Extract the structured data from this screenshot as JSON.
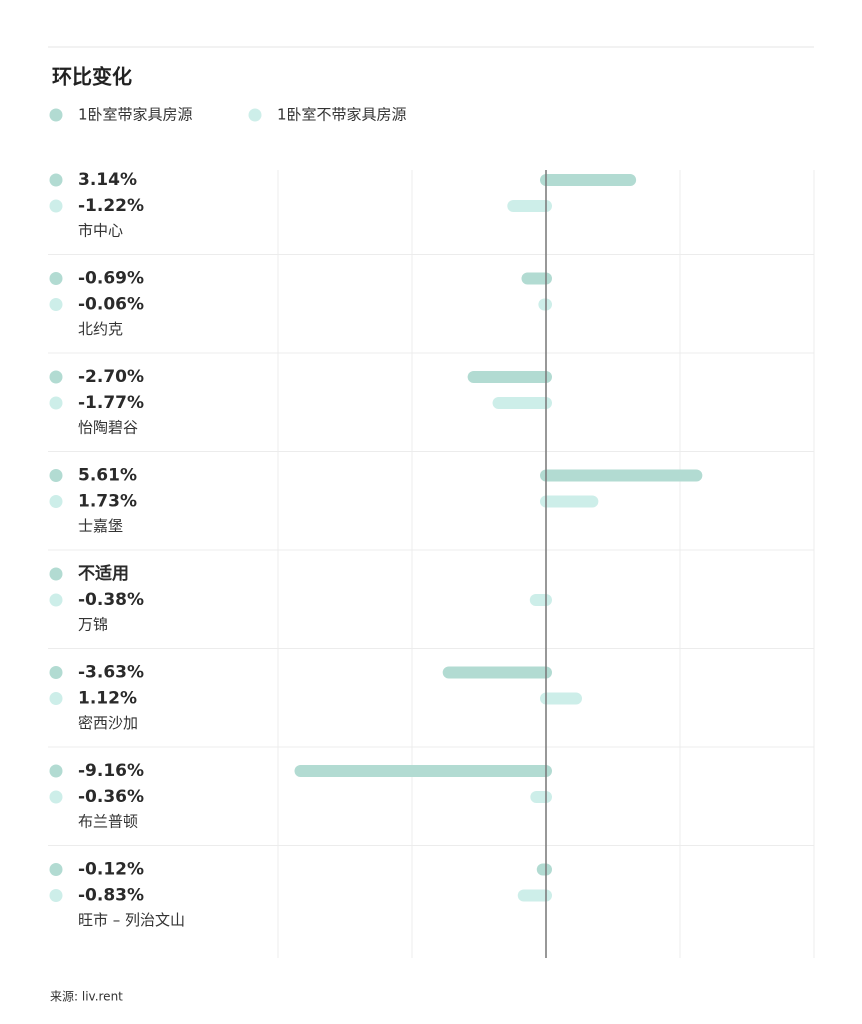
{
  "chart_data": {
    "type": "bar",
    "orientation": "horizontal",
    "title": "环比变化",
    "categories": [
      "市中心",
      "北约克",
      "怡陶碧谷",
      "士嘉堡",
      "万锦",
      "密西沙加",
      "布兰普顿",
      "旺市 – 列治文山"
    ],
    "series": [
      {
        "name": "1卧室带家具房源",
        "color": "#b2dbd2",
        "values": [
          3.14,
          -0.69,
          -2.7,
          5.61,
          null,
          -3.63,
          -9.16,
          -0.12
        ],
        "value_labels": [
          "3.14%",
          "-0.69%",
          "-2.70%",
          "5.61%",
          "不适用",
          "-3.63%",
          "-9.16%",
          "-0.12%"
        ]
      },
      {
        "name": "1卧室不带家具房源",
        "color": "#cdeee9",
        "values": [
          -1.22,
          -0.06,
          -1.77,
          1.73,
          -0.38,
          1.12,
          -0.36,
          -0.83
        ],
        "value_labels": [
          "-1.22%",
          "-0.06%",
          "-1.77%",
          "1.73%",
          "-0.38%",
          "1.12%",
          "-0.36%",
          "-0.83%"
        ]
      }
    ],
    "xlim": [
      -10,
      10
    ],
    "xticks": [
      -10,
      -5,
      0,
      5,
      10
    ],
    "grid": true,
    "source": "来源: liv.rent"
  }
}
